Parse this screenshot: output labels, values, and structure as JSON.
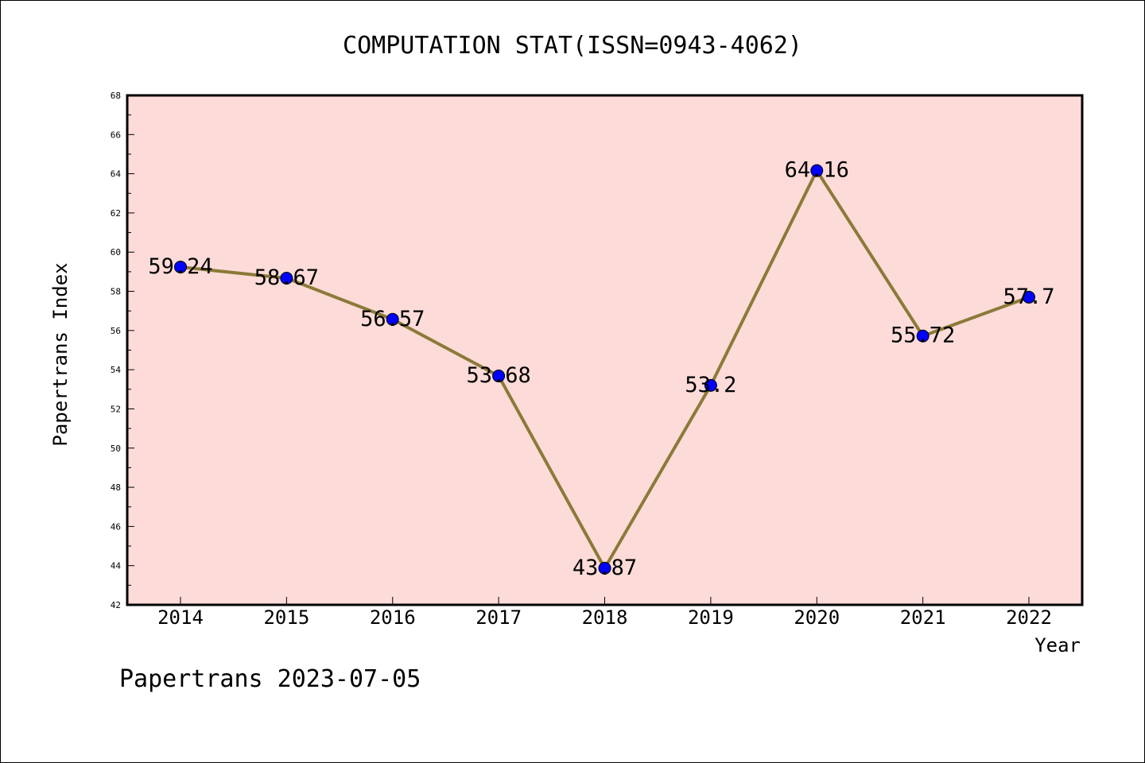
{
  "chart_data": {
    "type": "line",
    "title": "COMPUTATION STAT(ISSN=0943-4062)",
    "xlabel": "Year",
    "ylabel": "Papertrans Index",
    "categories": [
      "2014",
      "2015",
      "2016",
      "2017",
      "2018",
      "2019",
      "2020",
      "2021",
      "2022"
    ],
    "series": [
      {
        "values": [
          59.24,
          58.67,
          56.57,
          53.68,
          43.87,
          53.2,
          64.16,
          55.72,
          57.7
        ]
      }
    ],
    "data_labels": [
      "59.24",
      "58.67",
      "56.57",
      "53.68",
      "43.87",
      "53.2",
      "64.16",
      "55.72",
      "57.7"
    ],
    "ylim": [
      42,
      68
    ],
    "yticks": [
      "42",
      "44",
      "46",
      "48",
      "50",
      "52",
      "54",
      "56",
      "58",
      "60",
      "62",
      "64",
      "66",
      "68"
    ],
    "grid": false,
    "colors": {
      "plot_bg": "#fddbd8",
      "line": "#8b7a38",
      "marker": "#0000ff"
    }
  },
  "footer": "Papertrans 2023-07-05"
}
